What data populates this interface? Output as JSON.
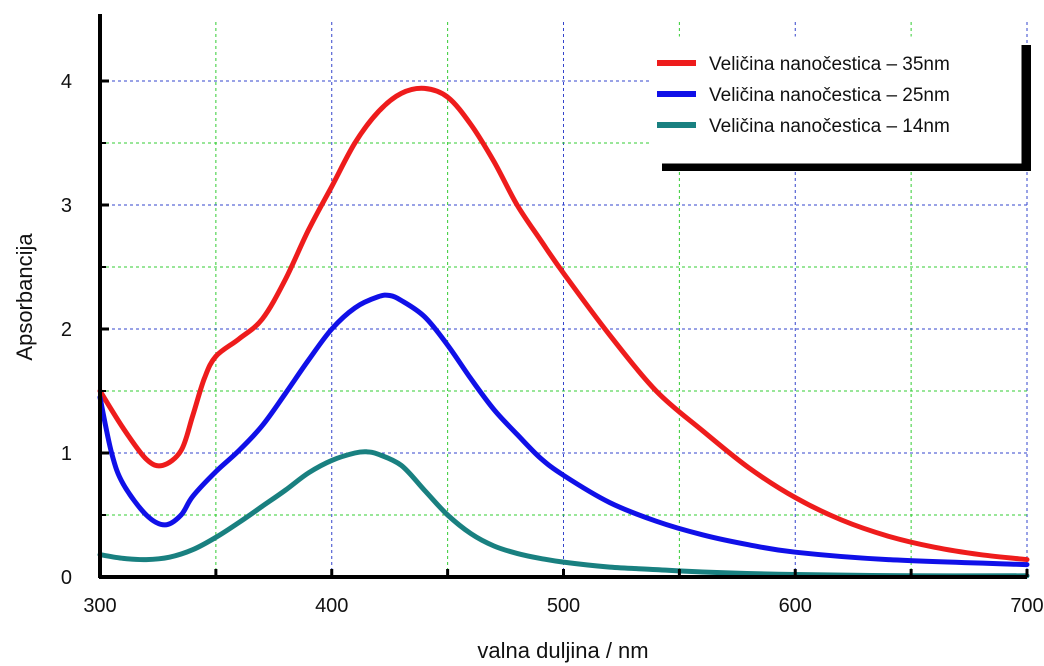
{
  "chart_data": {
    "type": "line",
    "xlabel": "valna duljina / nm",
    "ylabel": "Apsorbancija",
    "xlim": [
      300,
      700
    ],
    "ylim": [
      0,
      4.5
    ],
    "x_ticks": [
      300,
      400,
      500,
      600,
      700
    ],
    "y_ticks": [
      0,
      1,
      2,
      3,
      4
    ],
    "grid": true,
    "legend_position": "top-right",
    "x_minor_grid": [
      350,
      450,
      550,
      650
    ],
    "y_minor_grid": [
      0.5,
      1.5,
      2.5,
      3.5
    ],
    "series": [
      {
        "name": "Veličina nanočestica – 35nm",
        "color": "#ee1c1c",
        "points": [
          [
            300,
            1.5
          ],
          [
            310,
            1.2
          ],
          [
            320,
            0.95
          ],
          [
            327,
            0.9
          ],
          [
            335,
            1.02
          ],
          [
            340,
            1.3
          ],
          [
            345,
            1.6
          ],
          [
            350,
            1.78
          ],
          [
            360,
            1.92
          ],
          [
            370,
            2.08
          ],
          [
            380,
            2.4
          ],
          [
            390,
            2.8
          ],
          [
            400,
            3.15
          ],
          [
            410,
            3.5
          ],
          [
            420,
            3.75
          ],
          [
            430,
            3.9
          ],
          [
            440,
            3.94
          ],
          [
            450,
            3.87
          ],
          [
            460,
            3.65
          ],
          [
            470,
            3.35
          ],
          [
            480,
            3.0
          ],
          [
            490,
            2.72
          ],
          [
            500,
            2.45
          ],
          [
            520,
            1.95
          ],
          [
            540,
            1.5
          ],
          [
            560,
            1.18
          ],
          [
            580,
            0.88
          ],
          [
            600,
            0.64
          ],
          [
            620,
            0.46
          ],
          [
            640,
            0.33
          ],
          [
            660,
            0.24
          ],
          [
            680,
            0.18
          ],
          [
            700,
            0.14
          ]
        ]
      },
      {
        "name": "Veličina nanočestica – 25nm",
        "color": "#1010e8",
        "points": [
          [
            300,
            1.45
          ],
          [
            305,
            1.0
          ],
          [
            310,
            0.75
          ],
          [
            320,
            0.5
          ],
          [
            328,
            0.42
          ],
          [
            335,
            0.5
          ],
          [
            340,
            0.65
          ],
          [
            350,
            0.85
          ],
          [
            360,
            1.02
          ],
          [
            370,
            1.22
          ],
          [
            380,
            1.48
          ],
          [
            390,
            1.75
          ],
          [
            400,
            2.0
          ],
          [
            410,
            2.17
          ],
          [
            420,
            2.26
          ],
          [
            425,
            2.27
          ],
          [
            430,
            2.23
          ],
          [
            440,
            2.1
          ],
          [
            450,
            1.87
          ],
          [
            460,
            1.6
          ],
          [
            470,
            1.35
          ],
          [
            480,
            1.15
          ],
          [
            490,
            0.96
          ],
          [
            500,
            0.82
          ],
          [
            520,
            0.6
          ],
          [
            540,
            0.45
          ],
          [
            560,
            0.34
          ],
          [
            580,
            0.26
          ],
          [
            600,
            0.2
          ],
          [
            640,
            0.14
          ],
          [
            700,
            0.1
          ]
        ]
      },
      {
        "name": "Veličina nanočestica – 14nm",
        "color": "#198080",
        "points": [
          [
            300,
            0.18
          ],
          [
            310,
            0.15
          ],
          [
            320,
            0.14
          ],
          [
            330,
            0.16
          ],
          [
            340,
            0.22
          ],
          [
            350,
            0.32
          ],
          [
            360,
            0.44
          ],
          [
            370,
            0.57
          ],
          [
            380,
            0.7
          ],
          [
            390,
            0.84
          ],
          [
            400,
            0.94
          ],
          [
            410,
            1.0
          ],
          [
            415,
            1.01
          ],
          [
            420,
            0.99
          ],
          [
            430,
            0.9
          ],
          [
            440,
            0.7
          ],
          [
            450,
            0.5
          ],
          [
            460,
            0.35
          ],
          [
            470,
            0.25
          ],
          [
            480,
            0.19
          ],
          [
            490,
            0.15
          ],
          [
            500,
            0.12
          ],
          [
            520,
            0.08
          ],
          [
            540,
            0.06
          ],
          [
            560,
            0.04
          ],
          [
            600,
            0.02
          ],
          [
            650,
            0.01
          ],
          [
            700,
            0.01
          ]
        ]
      }
    ]
  }
}
